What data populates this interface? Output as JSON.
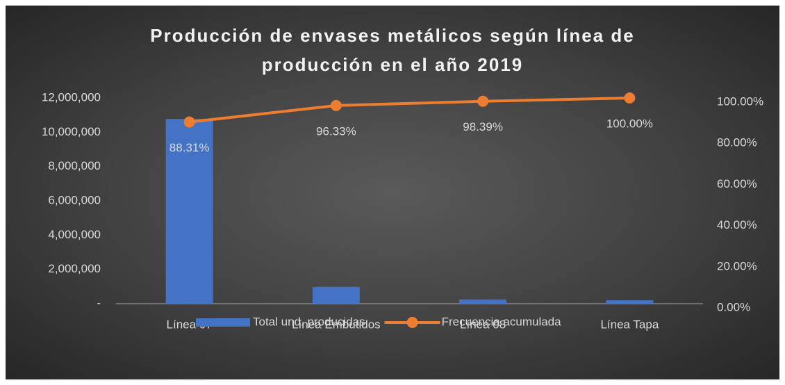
{
  "chart_data": {
    "type": "bar",
    "title": "Producción de envases metálicos según línea de producción en el año 2019",
    "categories": [
      "Línea 07",
      "Línea Embutidos",
      "Línea 08",
      "Línea Tapa"
    ],
    "series": [
      {
        "name": "Total und. producidas",
        "type": "bar",
        "color": "#4472c4",
        "axis": "y",
        "values": [
          10780000,
          980000,
          250000,
          200000
        ]
      },
      {
        "name": "Frecuencia acumulada",
        "type": "line",
        "color": "#ed7d31",
        "axis": "y2",
        "values": [
          88.31,
          96.33,
          98.39,
          100
        ],
        "value_labels": [
          "88.31%",
          "96.33%",
          "98.39%",
          "100.00%"
        ]
      }
    ],
    "ylim": [
      0,
      12000000
    ],
    "yticks": [
      {
        "value": 0,
        "label": "-"
      },
      {
        "value": 2000000,
        "label": "2,000,000"
      },
      {
        "value": 4000000,
        "label": "4,000,000"
      },
      {
        "value": 6000000,
        "label": "6,000,000"
      },
      {
        "value": 8000000,
        "label": "8,000,000"
      },
      {
        "value": 10000000,
        "label": "10,000,000"
      },
      {
        "value": 12000000,
        "label": "12,000,000"
      }
    ],
    "y2lim": [
      0,
      100
    ],
    "y2ticks": [
      {
        "value": 0,
        "label": "0.00%"
      },
      {
        "value": 20,
        "label": "20.00%"
      },
      {
        "value": 40,
        "label": "40.00%"
      },
      {
        "value": 60,
        "label": "60.00%"
      },
      {
        "value": 80,
        "label": "80.00%"
      },
      {
        "value": 100,
        "label": "100.00%"
      }
    ],
    "legend": "bottom"
  }
}
